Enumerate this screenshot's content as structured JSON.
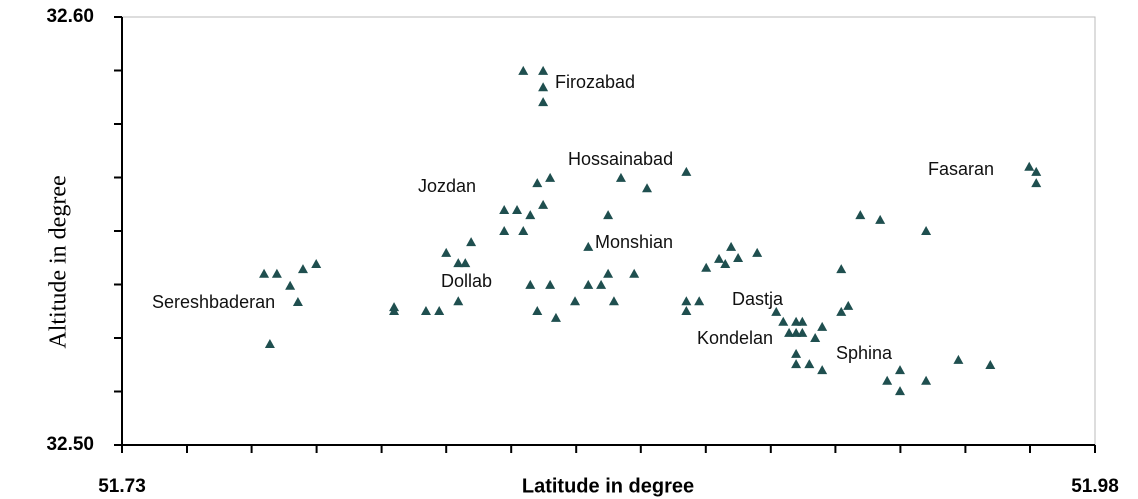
{
  "chart_data": {
    "type": "scatter",
    "x_label": "Latitude in degree",
    "y_label": "Altitude in degree",
    "xlim": [
      51.73,
      51.98
    ],
    "ylim": [
      32.5,
      32.6
    ],
    "xticks": [
      {
        "value": 51.73,
        "label": "51.73"
      },
      {
        "value": 51.98,
        "label": "51.98"
      }
    ],
    "yticks": [
      {
        "value": 32.5,
        "label": "32.50"
      },
      {
        "value": 32.6,
        "label": "32.60"
      }
    ],
    "xminorticks": [
      51.7467,
      51.7633,
      51.78,
      51.7967,
      51.8133,
      51.83,
      51.8467,
      51.8633,
      51.88,
      51.8967,
      51.9133,
      51.93,
      51.9467,
      51.9633
    ],
    "yminorticks": [
      32.5125,
      32.525,
      32.5375,
      32.55,
      32.5625,
      32.575,
      32.5875
    ],
    "color": "#1f4f4f",
    "x": [
      51.7665,
      51.7698,
      51.7732,
      51.7765,
      51.7799,
      51.7752,
      51.768,
      51.7999,
      51.7999,
      51.8081,
      51.8115,
      51.8164,
      51.8133,
      51.8164,
      51.8182,
      51.8197,
      51.8282,
      51.8315,
      51.8282,
      51.8331,
      51.8349,
      51.8382,
      51.8367,
      51.84,
      51.8331,
      51.8382,
      51.8382,
      51.8382,
      51.8349,
      51.84,
      51.8367,
      51.8415,
      51.8464,
      51.8498,
      51.8531,
      51.8549,
      51.8564,
      51.8498,
      51.8616,
      51.8549,
      51.8582,
      51.8649,
      51.875,
      51.875,
      51.8783,
      51.875,
      51.8801,
      51.8834,
      51.885,
      51.8865,
      51.8883,
      51.8932,
      51.8981,
      51.8999,
      51.9032,
      51.9048,
      51.9014,
      51.9032,
      51.9048,
      51.9081,
      51.9099,
      51.9032,
      51.9032,
      51.9066,
      51.9099,
      51.9148,
      51.9166,
      51.9148,
      51.9197,
      51.9248,
      51.9366,
      51.9631,
      51.9649,
      51.9649,
      51.9449,
      51.9531,
      51.9299,
      51.9266,
      51.9299,
      51.9366
    ],
    "y": [
      32.54,
      32.54,
      32.5372,
      32.5411,
      32.5423,
      32.5334,
      32.5236,
      32.5322,
      32.5313,
      32.5313,
      32.5313,
      32.5336,
      32.5449,
      32.5425,
      32.5425,
      32.5474,
      32.5549,
      32.5549,
      32.55,
      32.55,
      32.5537,
      32.5561,
      32.5612,
      32.5624,
      32.5874,
      32.5874,
      32.5836,
      32.5801,
      32.5374,
      32.5374,
      32.5313,
      32.5297,
      32.5336,
      32.5374,
      32.5374,
      32.54,
      32.5336,
      32.5463,
      32.54,
      32.5537,
      32.5624,
      32.56,
      32.5638,
      32.5336,
      32.5336,
      32.5313,
      32.5414,
      32.5435,
      32.5423,
      32.5463,
      32.5437,
      32.5449,
      32.5311,
      32.5288,
      32.5288,
      32.5288,
      32.5262,
      32.5262,
      32.5262,
      32.525,
      32.5276,
      32.5213,
      32.5189,
      32.5189,
      32.5175,
      32.5311,
      32.5325,
      32.5411,
      32.5537,
      32.5526,
      32.55,
      32.565,
      32.5638,
      32.5612,
      32.5199,
      32.5187,
      32.5175,
      32.515,
      32.5126,
      32.515
    ],
    "annotations": [
      "Firozabad",
      "Hossainabad",
      "Jozdan",
      "Fasaran",
      "Monshian",
      "Dollab",
      "Sereshbaderan",
      "Dastja",
      "Kondelan",
      "Sphina"
    ]
  }
}
